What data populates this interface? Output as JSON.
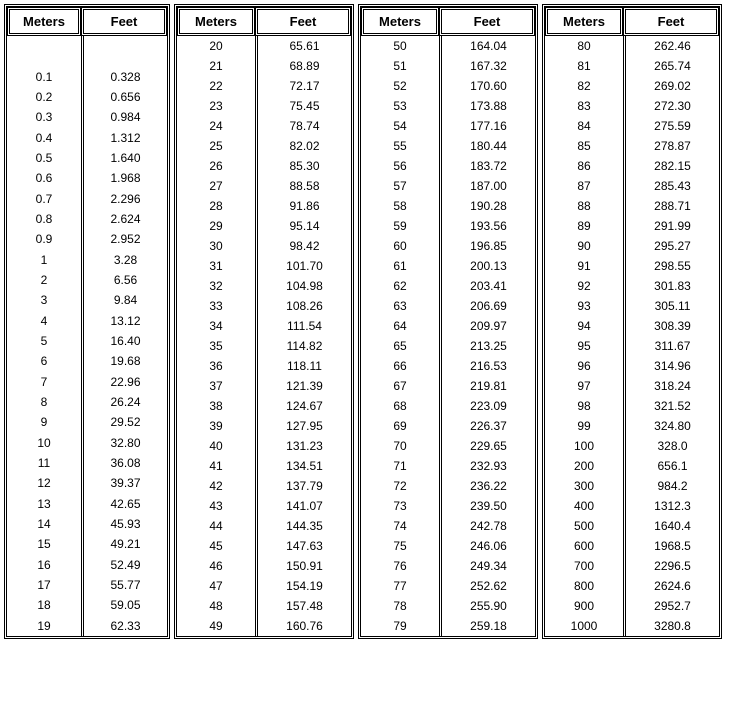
{
  "headers": {
    "meters": "Meters",
    "feet": "Feet"
  },
  "styling": {
    "font_family": "Arial, Helvetica, sans-serif",
    "header_fontsize": 13,
    "cell_fontsize": 12,
    "border_color": "#000000",
    "background_color": "#ffffff",
    "text_color": "#000000",
    "table_border_style": "double",
    "col_widths": {
      "meters_narrow": 68,
      "feet_narrow": 80,
      "meters_wide": 72,
      "feet_wide": 90
    }
  },
  "tables": [
    {
      "leading_gap": true,
      "rows": [
        {
          "m": "0.1",
          "f": "0.328"
        },
        {
          "m": "0.2",
          "f": "0.656"
        },
        {
          "m": "0.3",
          "f": "0.984"
        },
        {
          "m": "0.4",
          "f": "1.312"
        },
        {
          "m": "0.5",
          "f": "1.640"
        },
        {
          "m": "0.6",
          "f": "1.968"
        },
        {
          "m": "0.7",
          "f": "2.296"
        },
        {
          "m": "0.8",
          "f": "2.624"
        },
        {
          "m": "0.9",
          "f": "2.952"
        },
        {
          "m": "1",
          "f": "3.28"
        },
        {
          "m": "2",
          "f": "6.56"
        },
        {
          "m": "3",
          "f": "9.84"
        },
        {
          "m": "4",
          "f": "13.12"
        },
        {
          "m": "5",
          "f": "16.40"
        },
        {
          "m": "6",
          "f": "19.68"
        },
        {
          "m": "7",
          "f": "22.96"
        },
        {
          "m": "8",
          "f": "26.24"
        },
        {
          "m": "9",
          "f": "29.52"
        },
        {
          "m": "10",
          "f": "32.80"
        },
        {
          "m": "11",
          "f": "36.08"
        },
        {
          "m": "12",
          "f": "39.37"
        },
        {
          "m": "13",
          "f": "42.65"
        },
        {
          "m": "14",
          "f": "45.93"
        },
        {
          "m": "15",
          "f": "49.21"
        },
        {
          "m": "16",
          "f": "52.49"
        },
        {
          "m": "17",
          "f": "55.77"
        },
        {
          "m": "18",
          "f": "59.05"
        },
        {
          "m": "19",
          "f": "62.33"
        }
      ]
    },
    {
      "leading_gap": false,
      "rows": [
        {
          "m": "20",
          "f": "65.61"
        },
        {
          "m": "21",
          "f": "68.89"
        },
        {
          "m": "22",
          "f": "72.17"
        },
        {
          "m": "23",
          "f": "75.45"
        },
        {
          "m": "24",
          "f": "78.74"
        },
        {
          "m": "25",
          "f": "82.02"
        },
        {
          "m": "26",
          "f": "85.30"
        },
        {
          "m": "27",
          "f": "88.58"
        },
        {
          "m": "28",
          "f": "91.86"
        },
        {
          "m": "29",
          "f": "95.14"
        },
        {
          "m": "30",
          "f": "98.42"
        },
        {
          "m": "31",
          "f": "101.70"
        },
        {
          "m": "32",
          "f": "104.98"
        },
        {
          "m": "33",
          "f": "108.26"
        },
        {
          "m": "34",
          "f": "111.54"
        },
        {
          "m": "35",
          "f": "114.82"
        },
        {
          "m": "36",
          "f": "118.11"
        },
        {
          "m": "37",
          "f": "121.39"
        },
        {
          "m": "38",
          "f": "124.67"
        },
        {
          "m": "39",
          "f": "127.95"
        },
        {
          "m": "40",
          "f": "131.23"
        },
        {
          "m": "41",
          "f": "134.51"
        },
        {
          "m": "42",
          "f": "137.79"
        },
        {
          "m": "43",
          "f": "141.07"
        },
        {
          "m": "44",
          "f": "144.35"
        },
        {
          "m": "45",
          "f": "147.63"
        },
        {
          "m": "46",
          "f": "150.91"
        },
        {
          "m": "47",
          "f": "154.19"
        },
        {
          "m": "48",
          "f": "157.48"
        },
        {
          "m": "49",
          "f": "160.76"
        }
      ]
    },
    {
      "leading_gap": false,
      "rows": [
        {
          "m": "50",
          "f": "164.04"
        },
        {
          "m": "51",
          "f": "167.32"
        },
        {
          "m": "52",
          "f": "170.60"
        },
        {
          "m": "53",
          "f": "173.88"
        },
        {
          "m": "54",
          "f": "177.16"
        },
        {
          "m": "55",
          "f": "180.44"
        },
        {
          "m": "56",
          "f": "183.72"
        },
        {
          "m": "57",
          "f": "187.00"
        },
        {
          "m": "58",
          "f": "190.28"
        },
        {
          "m": "59",
          "f": "193.56"
        },
        {
          "m": "60",
          "f": "196.85"
        },
        {
          "m": "61",
          "f": "200.13"
        },
        {
          "m": "62",
          "f": "203.41"
        },
        {
          "m": "63",
          "f": "206.69"
        },
        {
          "m": "64",
          "f": "209.97"
        },
        {
          "m": "65",
          "f": "213.25"
        },
        {
          "m": "66",
          "f": "216.53"
        },
        {
          "m": "67",
          "f": "219.81"
        },
        {
          "m": "68",
          "f": "223.09"
        },
        {
          "m": "69",
          "f": "226.37"
        },
        {
          "m": "70",
          "f": "229.65"
        },
        {
          "m": "71",
          "f": "232.93"
        },
        {
          "m": "72",
          "f": "236.22"
        },
        {
          "m": "73",
          "f": "239.50"
        },
        {
          "m": "74",
          "f": "242.78"
        },
        {
          "m": "75",
          "f": "246.06"
        },
        {
          "m": "76",
          "f": "249.34"
        },
        {
          "m": "77",
          "f": "252.62"
        },
        {
          "m": "78",
          "f": "255.90"
        },
        {
          "m": "79",
          "f": "259.18"
        }
      ]
    },
    {
      "leading_gap": false,
      "rows": [
        {
          "m": "80",
          "f": "262.46"
        },
        {
          "m": "81",
          "f": "265.74"
        },
        {
          "m": "82",
          "f": "269.02"
        },
        {
          "m": "83",
          "f": "272.30"
        },
        {
          "m": "84",
          "f": "275.59"
        },
        {
          "m": "85",
          "f": "278.87"
        },
        {
          "m": "86",
          "f": "282.15"
        },
        {
          "m": "87",
          "f": "285.43"
        },
        {
          "m": "88",
          "f": "288.71"
        },
        {
          "m": "89",
          "f": "291.99"
        },
        {
          "m": "90",
          "f": "295.27"
        },
        {
          "m": "91",
          "f": "298.55"
        },
        {
          "m": "92",
          "f": "301.83"
        },
        {
          "m": "93",
          "f": "305.11"
        },
        {
          "m": "94",
          "f": "308.39"
        },
        {
          "m": "95",
          "f": "311.67"
        },
        {
          "m": "96",
          "f": "314.96"
        },
        {
          "m": "97",
          "f": "318.24"
        },
        {
          "m": "98",
          "f": "321.52"
        },
        {
          "m": "99",
          "f": "324.80"
        },
        {
          "m": "100",
          "f": "328.0"
        },
        {
          "m": "200",
          "f": "656.1"
        },
        {
          "m": "300",
          "f": "984.2"
        },
        {
          "m": "400",
          "f": "1312.3"
        },
        {
          "m": "500",
          "f": "1640.4"
        },
        {
          "m": "600",
          "f": "1968.5"
        },
        {
          "m": "700",
          "f": "2296.5"
        },
        {
          "m": "800",
          "f": "2624.6"
        },
        {
          "m": "900",
          "f": "2952.7"
        },
        {
          "m": "1000",
          "f": "3280.8"
        }
      ]
    }
  ]
}
